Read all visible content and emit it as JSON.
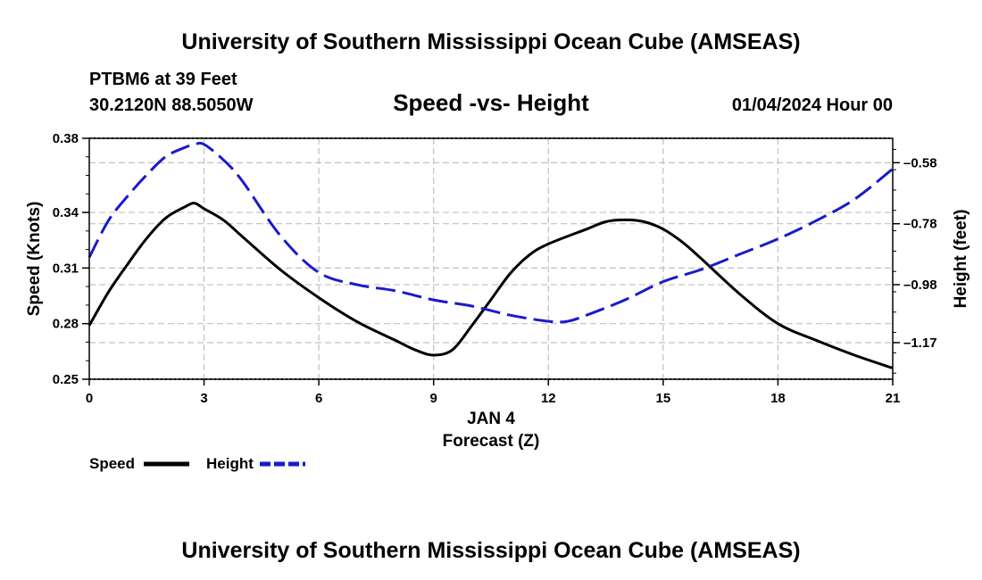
{
  "header": {
    "title": "University of Southern Mississippi Ocean Cube (AMSEAS)",
    "station": "PTBM6 at 39 Feet",
    "coords": "30.2120N  88.5050W",
    "chart_heading": "Speed -vs- Height",
    "timestamp": "01/04/2024 Hour 00"
  },
  "footer": {
    "title": "University of Southern Mississippi Ocean Cube (AMSEAS)"
  },
  "legend": {
    "speed_label": "Speed",
    "height_label": "Height"
  },
  "colors": {
    "speed": "#000000",
    "height": "#1a1acc",
    "grid": "#c0c0c0"
  },
  "chart_data": {
    "type": "line",
    "title": "Speed -vs- Height",
    "xlabel": "Forecast (Z)",
    "xlabel_date": "JAN 4",
    "ylabel_left": "Speed (Knots)",
    "ylabel_right": "Height (feet)",
    "xlim": [
      0,
      21
    ],
    "ylim_left": [
      0.25,
      0.38
    ],
    "ylim_right": [
      -1.29,
      -0.5
    ],
    "x_ticks": [
      0,
      3,
      6,
      9,
      12,
      15,
      18,
      21
    ],
    "x_tick_labels": [
      "0",
      "3",
      "6",
      "9",
      "12",
      "15",
      "18",
      "21"
    ],
    "y_left_ticks": [
      0.25,
      0.28,
      0.31,
      0.34,
      0.38
    ],
    "y_left_tick_labels": [
      "0.25",
      "0.28",
      "0.31",
      "0.34",
      "0.38"
    ],
    "y_right_ticks": [
      -1.17,
      -0.98,
      -0.78,
      -0.58
    ],
    "y_right_tick_labels": [
      "–1.17",
      "–0.98",
      "–0.78",
      "–0.58"
    ],
    "grid": true,
    "legend_position": "bottom-left",
    "series": [
      {
        "name": "Speed",
        "axis": "left",
        "style": "solid",
        "x": [
          0,
          0.5,
          1,
          1.5,
          2,
          2.5,
          2.75,
          3,
          3.5,
          4,
          5,
          6,
          7,
          8,
          8.5,
          9,
          9.5,
          10,
          10.5,
          11,
          11.5,
          12,
          13,
          13.5,
          14,
          14.5,
          15,
          15.5,
          16,
          17,
          18,
          19,
          20,
          21
        ],
        "values": [
          0.279,
          0.297,
          0.312,
          0.326,
          0.337,
          0.343,
          0.345,
          0.342,
          0.336,
          0.327,
          0.309,
          0.294,
          0.281,
          0.271,
          0.266,
          0.263,
          0.266,
          0.279,
          0.293,
          0.307,
          0.317,
          0.323,
          0.331,
          0.335,
          0.336,
          0.335,
          0.331,
          0.324,
          0.315,
          0.296,
          0.28,
          0.271,
          0.263,
          0.256
        ]
      },
      {
        "name": "Height",
        "axis": "right",
        "style": "dashed",
        "x": [
          0,
          0.5,
          1,
          1.5,
          2,
          2.5,
          2.75,
          3,
          3.5,
          4,
          5,
          6,
          7,
          8,
          9,
          10,
          11,
          12,
          12.5,
          13,
          14,
          15,
          16,
          17,
          18,
          19,
          20,
          21
        ],
        "values": [
          -0.89,
          -0.77,
          -0.69,
          -0.62,
          -0.56,
          -0.53,
          -0.52,
          -0.52,
          -0.57,
          -0.64,
          -0.82,
          -0.94,
          -0.98,
          -1.0,
          -1.03,
          -1.05,
          -1.08,
          -1.1,
          -1.1,
          -1.08,
          -1.03,
          -0.97,
          -0.93,
          -0.88,
          -0.83,
          -0.77,
          -0.7,
          -0.6
        ]
      }
    ]
  }
}
